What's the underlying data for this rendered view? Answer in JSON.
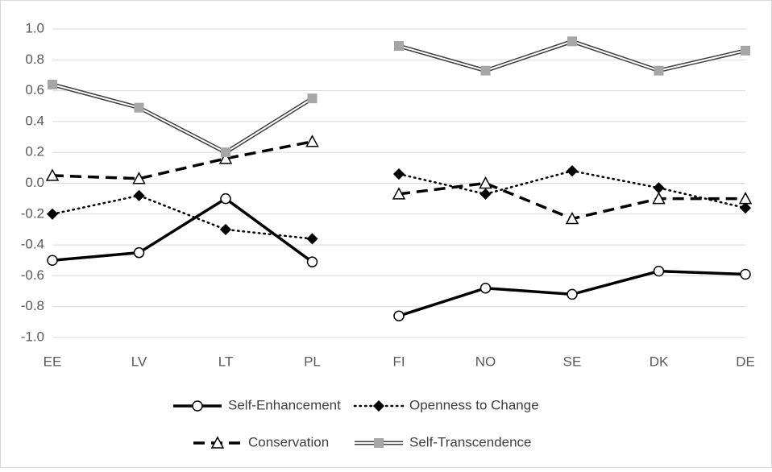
{
  "chart_data": {
    "type": "line",
    "categories": [
      "EE",
      "LV",
      "LT",
      "PL",
      "FI",
      "NO",
      "SE",
      "DK",
      "DE"
    ],
    "segments": [
      4,
      5
    ],
    "ylim": [
      -1,
      1
    ],
    "yticks": [
      {
        "value": -1,
        "label": "-1.0"
      },
      -0.8,
      -0.6,
      -0.4,
      -0.2,
      {
        "value": 0,
        "label": "0.0"
      },
      0.2,
      0.4,
      0.6,
      0.8,
      {
        "value": 1,
        "label": "1.0"
      }
    ],
    "grid": true,
    "legend": "bottom",
    "series": [
      {
        "name": "Self-Enhancement",
        "color": "#000000",
        "line": "solid",
        "marker": "circle",
        "values": [
          -0.5,
          -0.45,
          -0.1,
          -0.51,
          -0.86,
          -0.68,
          -0.72,
          -0.57,
          -0.59
        ]
      },
      {
        "name": "Openness to Change",
        "color": "#000000",
        "line": "dotted",
        "marker": "diamond",
        "values": [
          -0.2,
          -0.08,
          -0.3,
          -0.36,
          0.06,
          -0.07,
          0.08,
          -0.03,
          -0.16
        ]
      },
      {
        "name": "Conservation",
        "color": "#000000",
        "line": "dashed",
        "marker": "triangle",
        "values": [
          0.05,
          0.03,
          0.16,
          0.27,
          -0.07,
          0.0,
          -0.23,
          -0.1,
          -0.1
        ]
      },
      {
        "name": "Self-Transcendence",
        "color": "#a6a6a6",
        "line": "double",
        "marker": "square",
        "values": [
          0.64,
          0.49,
          0.2,
          0.55,
          0.89,
          0.73,
          0.92,
          0.73,
          0.86
        ]
      }
    ]
  }
}
